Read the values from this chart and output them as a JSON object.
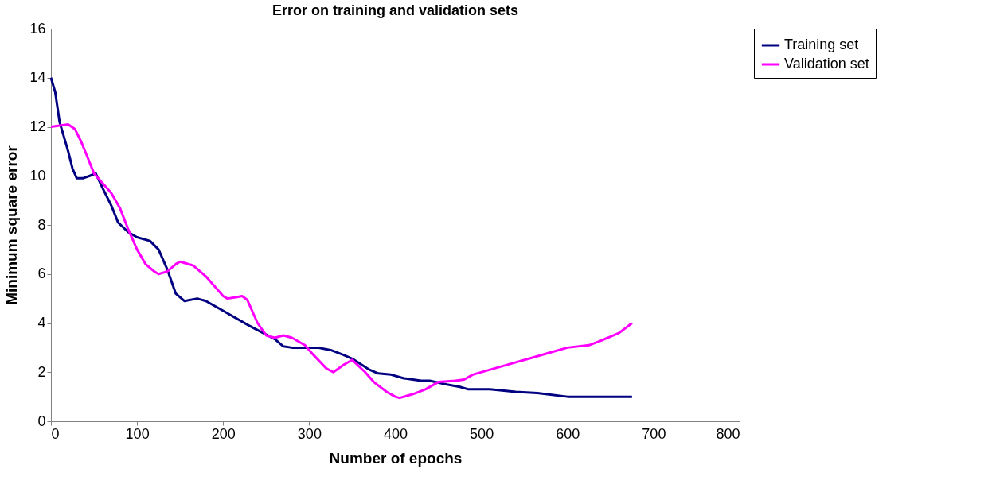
{
  "chart_data": {
    "type": "line",
    "title": "Error on training and validation sets",
    "xlabel": "Number of epochs",
    "ylabel": "Minimum square error",
    "xlim": [
      0,
      800
    ],
    "xticks": [
      0,
      100,
      200,
      300,
      400,
      500,
      600,
      700,
      800
    ],
    "ylim": [
      0,
      16
    ],
    "yticks": [
      0,
      2,
      4,
      6,
      8,
      10,
      12,
      14,
      16
    ],
    "grid": false,
    "legend": "right",
    "marker": "none",
    "line_style": "solid",
    "series": [
      {
        "name": "Training set",
        "color": "#000080",
        "x": [
          0,
          5,
          10,
          15,
          20,
          25,
          30,
          37,
          45,
          52,
          60,
          70,
          78,
          90,
          100,
          115,
          125,
          135,
          145,
          155,
          170,
          180,
          200,
          230,
          260,
          270,
          280,
          310,
          325,
          340,
          350,
          370,
          380,
          395,
          410,
          430,
          440,
          460,
          475,
          485,
          510,
          540,
          565,
          600,
          620,
          675
        ],
        "values": [
          14,
          13.4,
          12.2,
          11.6,
          11,
          10.3,
          9.9,
          9.9,
          10,
          10.1,
          9.5,
          8.8,
          8.1,
          7.7,
          7.5,
          7.35,
          7,
          6.2,
          5.2,
          4.9,
          5,
          4.9,
          4.5,
          3.9,
          3.35,
          3.05,
          3,
          3,
          2.9,
          2.7,
          2.55,
          2.1,
          1.95,
          1.9,
          1.75,
          1.65,
          1.65,
          1.5,
          1.4,
          1.3,
          1.3,
          1.2,
          1.15,
          1,
          1,
          1
        ]
      },
      {
        "name": "Validation set",
        "color": "#ff00ff",
        "x": [
          0,
          10,
          20,
          28,
          35,
          42,
          50,
          60,
          70,
          80,
          90,
          100,
          110,
          120,
          125,
          135,
          145,
          150,
          165,
          180,
          200,
          205,
          215,
          222,
          228,
          240,
          250,
          260,
          270,
          280,
          295,
          305,
          320,
          328,
          340,
          350,
          365,
          375,
          390,
          400,
          405,
          420,
          435,
          450,
          470,
          480,
          490,
          510,
          540,
          560,
          580,
          600,
          625,
          640,
          660,
          675
        ],
        "values": [
          12,
          12.05,
          12.1,
          11.9,
          11.4,
          10.8,
          10.1,
          9.7,
          9.3,
          8.7,
          7.8,
          7,
          6.4,
          6.1,
          6,
          6.1,
          6.4,
          6.5,
          6.35,
          5.9,
          5.1,
          5,
          5.05,
          5.1,
          4.95,
          4,
          3.5,
          3.4,
          3.5,
          3.4,
          3.1,
          2.7,
          2.15,
          2,
          2.3,
          2.5,
          2,
          1.6,
          1.2,
          1,
          0.95,
          1.1,
          1.3,
          1.6,
          1.65,
          1.7,
          1.9,
          2.1,
          2.4,
          2.6,
          2.8,
          3,
          3.1,
          3.3,
          3.6,
          4
        ]
      }
    ]
  }
}
